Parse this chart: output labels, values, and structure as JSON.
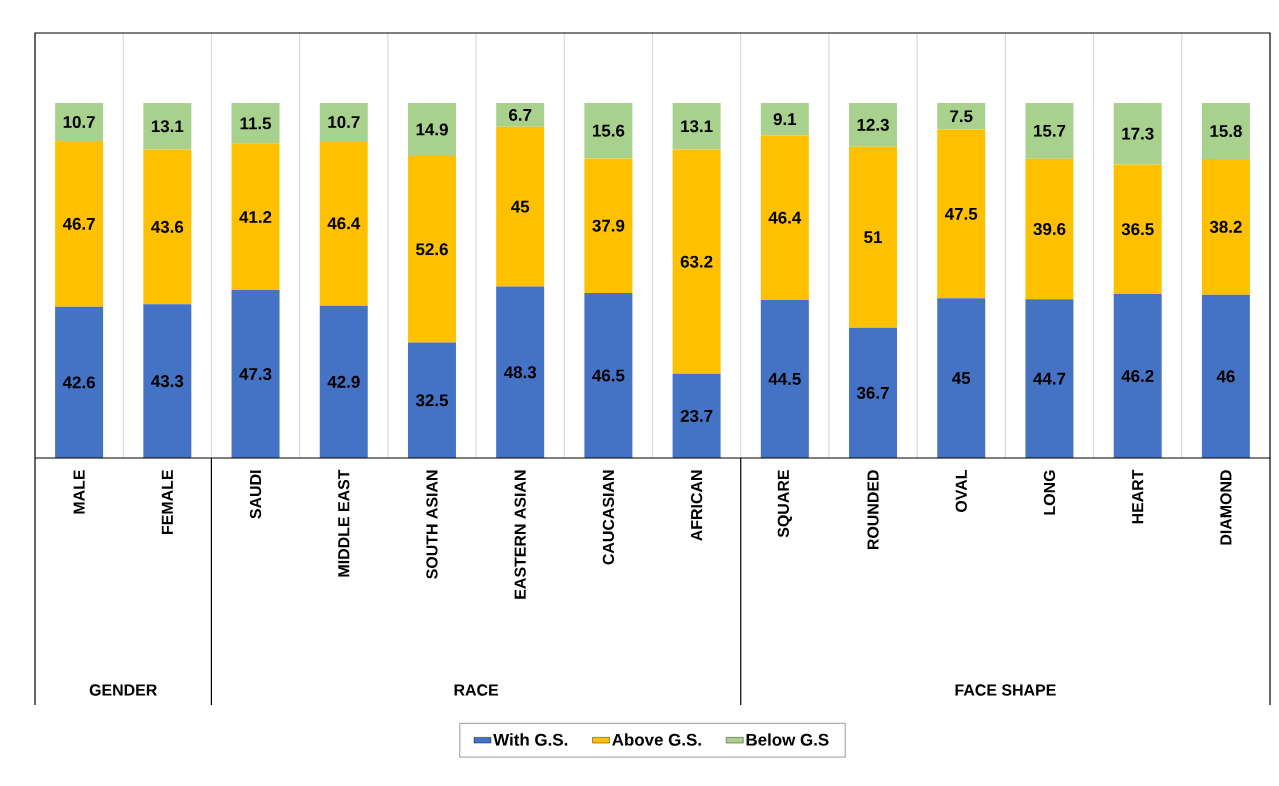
{
  "chart_data": {
    "type": "bar",
    "stacked": true,
    "data_labels": true,
    "legend": "bottom",
    "categories": [
      "MALE",
      "FEMALE",
      "SAUDI",
      "MIDDLE EAST",
      "SOUTH ASIAN",
      "EASTERN ASIAN",
      "CAUCASIAN",
      "AFRICAN",
      "SQUARE",
      "ROUNDED",
      "OVAL",
      "LONG",
      "HEART",
      "DIAMOND"
    ],
    "series": [
      {
        "name": "With G.S.",
        "color": "#4472c4",
        "values": [
          42.6,
          43.3,
          47.3,
          42.9,
          32.5,
          48.3,
          46.5,
          23.7,
          44.5,
          36.7,
          45,
          44.7,
          46.2,
          46
        ]
      },
      {
        "name": "Above G.S.",
        "color": "#ffc000",
        "values": [
          46.7,
          43.6,
          41.2,
          46.4,
          52.6,
          45,
          37.9,
          63.2,
          46.4,
          51,
          47.5,
          39.6,
          36.5,
          38.2
        ]
      },
      {
        "name": "Below G.S",
        "color": "#a9d18e",
        "values": [
          10.7,
          13.1,
          11.5,
          10.7,
          14.9,
          6.7,
          15.6,
          13.1,
          9.1,
          12.3,
          7.5,
          15.7,
          17.3,
          15.8
        ]
      }
    ],
    "annotations": [
      "GENDER",
      "RACE",
      "FACE SHAPE"
    ]
  }
}
